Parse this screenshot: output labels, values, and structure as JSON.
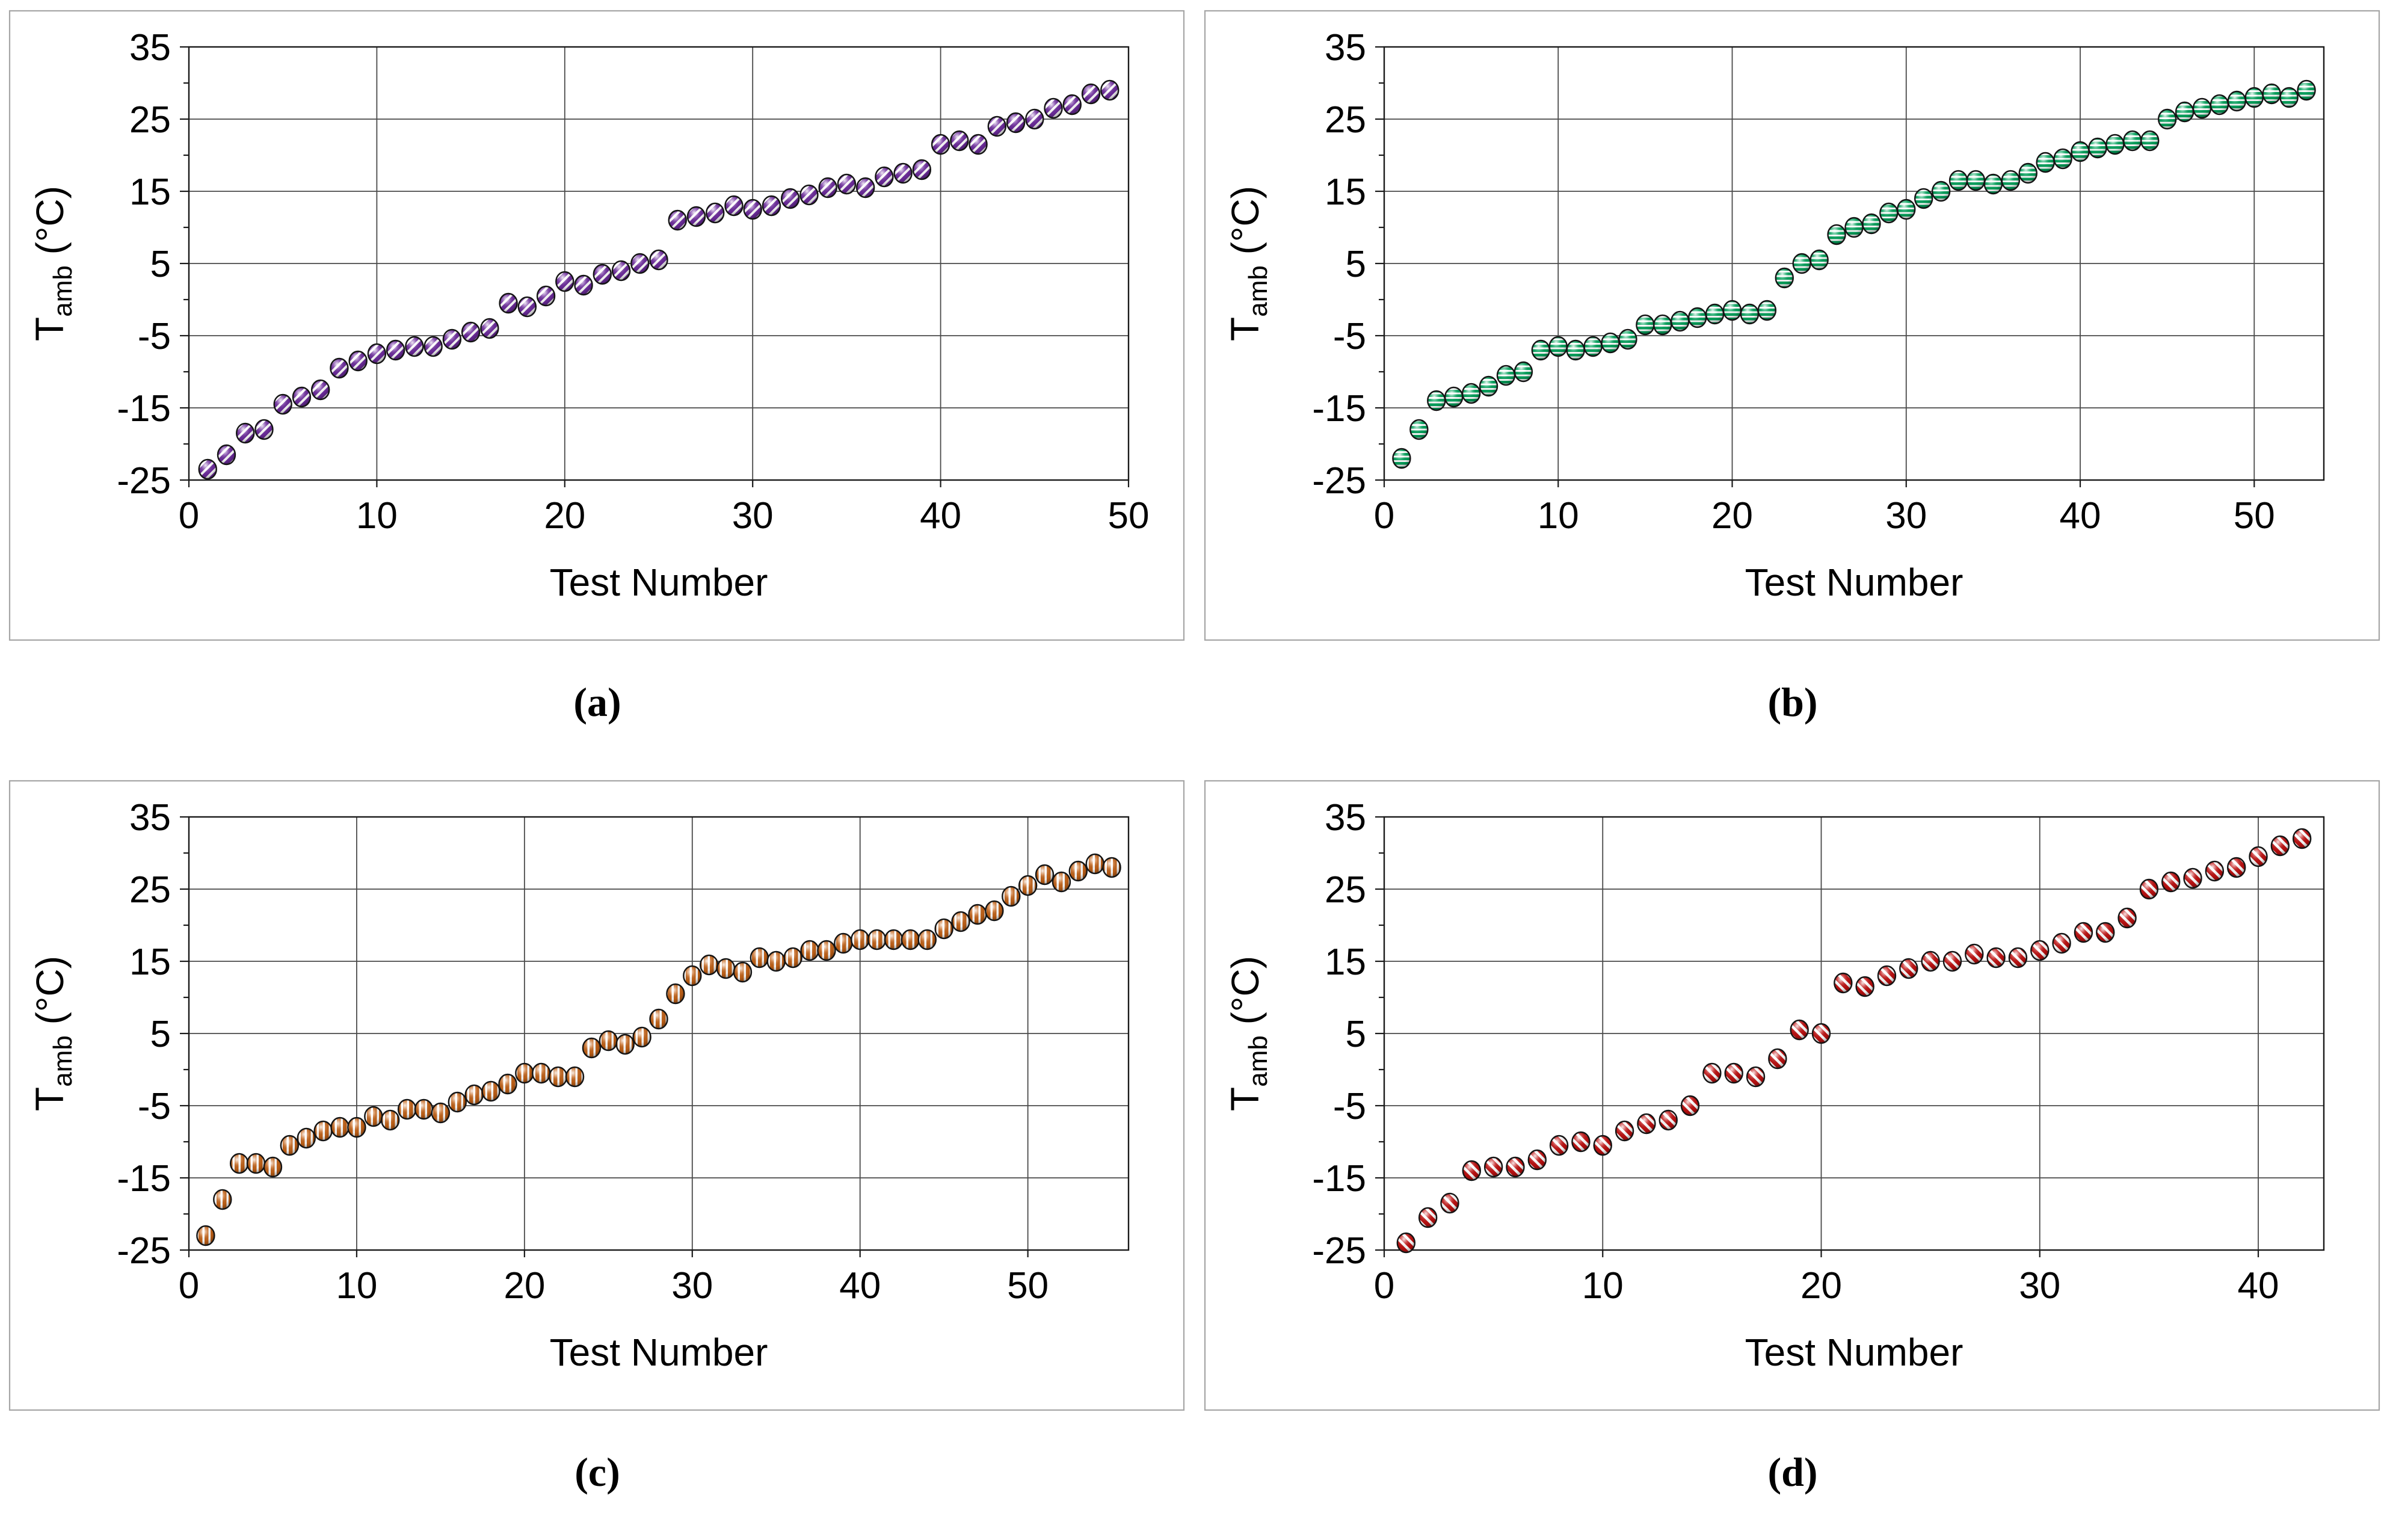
{
  "figure": {
    "background": "#ffffff",
    "panel_border_color": "#a6a6a6",
    "plot_border_color": "#1a1a1a",
    "gridline_color": "#4a4a4a",
    "tick_color": "#1a1a1a",
    "text_color": "#000000",
    "x_axis_title": "Test Number",
    "y_axis_title": {
      "symbol": "T",
      "subscript": "amb",
      "unit": "(°C)"
    }
  },
  "chart_data": [
    {
      "id": "a",
      "type": "scatter",
      "caption": "(a)",
      "xlabel": "Test Number",
      "ylabel": "T_amb (°C)",
      "xlim": [
        0,
        50
      ],
      "ylim": [
        -25,
        35
      ],
      "x_ticks": [
        0,
        10,
        20,
        30,
        40,
        50
      ],
      "y_ticks": [
        35,
        25,
        15,
        5,
        -5,
        -15,
        -25
      ],
      "grid": true,
      "legend": false,
      "marker": {
        "color": "#6E2C9E",
        "stripe_direction": "diagonal-up",
        "stripe_period": 11,
        "stripe_white_width": 4,
        "outline": "#141414"
      },
      "x": [
        1,
        2,
        3,
        4,
        5,
        6,
        7,
        8,
        9,
        10,
        11,
        12,
        13,
        14,
        15,
        16,
        17,
        18,
        19,
        20,
        21,
        22,
        23,
        24,
        25,
        26,
        27,
        28,
        29,
        30,
        31,
        32,
        33,
        34,
        35,
        36,
        37,
        38,
        39,
        40,
        41,
        42,
        43,
        44,
        45,
        46,
        47,
        48,
        49
      ],
      "values": [
        -23.5,
        -21.5,
        -18.5,
        -18,
        -14.5,
        -13.5,
        -12.5,
        -9.5,
        -8.5,
        -7.5,
        -7,
        -6.5,
        -6.5,
        -5.5,
        -4.5,
        -4,
        -0.5,
        -1,
        0.5,
        2.5,
        2,
        3.5,
        4,
        5,
        5.5,
        11,
        11.5,
        12,
        13,
        12.5,
        13,
        14,
        14.5,
        15.5,
        16,
        15.5,
        17,
        17.5,
        18,
        21.5,
        22,
        21.5,
        24,
        24.5,
        25,
        26.5,
        27,
        28.5,
        29
      ]
    },
    {
      "id": "b",
      "type": "scatter",
      "caption": "(b)",
      "xlabel": "Test Number",
      "ylabel": "T_amb (°C)",
      "xlim": [
        0,
        54
      ],
      "ylim": [
        -25,
        35
      ],
      "x_ticks": [
        0,
        10,
        20,
        30,
        40,
        50
      ],
      "y_ticks": [
        35,
        25,
        15,
        5,
        -5,
        -15,
        -25
      ],
      "grid": true,
      "legend": false,
      "marker": {
        "color": "#00A35B",
        "stripe_direction": "horizontal",
        "stripe_period": 7.5,
        "stripe_white_width": 3,
        "outline": "#141414"
      },
      "x": [
        1,
        2,
        3,
        4,
        5,
        6,
        7,
        8,
        9,
        10,
        11,
        12,
        13,
        14,
        15,
        16,
        17,
        18,
        19,
        20,
        21,
        22,
        23,
        24,
        25,
        26,
        27,
        28,
        29,
        30,
        31,
        32,
        33,
        34,
        35,
        36,
        37,
        38,
        39,
        40,
        41,
        42,
        43,
        44,
        45,
        46,
        47,
        48,
        49,
        50,
        51,
        52,
        53
      ],
      "values": [
        -22,
        -18,
        -14,
        -13.5,
        -13,
        -12,
        -10.5,
        -10,
        -7,
        -6.5,
        -7,
        -6.5,
        -6,
        -5.5,
        -3.5,
        -3.5,
        -3,
        -2.5,
        -2,
        -1.5,
        -2,
        -1.5,
        3,
        5,
        5.5,
        9,
        10,
        10.5,
        12,
        12.5,
        14,
        15,
        16.5,
        16.5,
        16,
        16.5,
        17.5,
        19,
        19.5,
        20.5,
        21,
        21.5,
        22,
        22,
        25,
        26,
        26.5,
        27,
        27.5,
        28,
        28.5,
        28,
        29
      ]
    },
    {
      "id": "c",
      "type": "scatter",
      "caption": "(c)",
      "xlabel": "Test Number",
      "ylabel": "T_amb (°C)",
      "xlim": [
        0,
        56
      ],
      "ylim": [
        -25,
        35
      ],
      "x_ticks": [
        0,
        10,
        20,
        30,
        40,
        50
      ],
      "y_ticks": [
        35,
        25,
        15,
        5,
        -5,
        -15,
        -25
      ],
      "grid": true,
      "legend": false,
      "marker": {
        "color": "#C46318",
        "stripe_direction": "vertical",
        "stripe_period": 10,
        "stripe_white_width": 3.5,
        "outline": "#141414"
      },
      "x": [
        1,
        2,
        3,
        4,
        5,
        6,
        7,
        8,
        9,
        10,
        11,
        12,
        13,
        14,
        15,
        16,
        17,
        18,
        19,
        20,
        21,
        22,
        23,
        24,
        25,
        26,
        27,
        28,
        29,
        30,
        31,
        32,
        33,
        34,
        35,
        36,
        37,
        38,
        39,
        40,
        41,
        42,
        43,
        44,
        45,
        46,
        47,
        48,
        49,
        50,
        51,
        52,
        53,
        54,
        55
      ],
      "values": [
        -23,
        -18,
        -13,
        -13,
        -13.5,
        -10.5,
        -9.5,
        -8.5,
        -8,
        -8,
        -6.5,
        -7,
        -5.5,
        -5.5,
        -6,
        -4.5,
        -3.5,
        -3,
        -2,
        -0.5,
        -0.5,
        -1,
        -1,
        3,
        4,
        3.5,
        4.5,
        7,
        10.5,
        13,
        14.5,
        14,
        13.5,
        15.5,
        15,
        15.5,
        16.5,
        16.5,
        17.5,
        18,
        18,
        18,
        18,
        18,
        19.5,
        20.5,
        21.5,
        22,
        24,
        25.5,
        27,
        26,
        27.5,
        28.5,
        28
      ]
    },
    {
      "id": "d",
      "type": "scatter",
      "caption": "(d)",
      "xlabel": "Test Number",
      "ylabel": "T_amb (°C)",
      "xlim": [
        0,
        43
      ],
      "ylim": [
        -25,
        35
      ],
      "x_ticks": [
        0,
        10,
        20,
        30,
        40
      ],
      "y_ticks": [
        35,
        25,
        15,
        5,
        -5,
        -15,
        -25
      ],
      "grid": true,
      "legend": false,
      "marker": {
        "color": "#C01111",
        "stripe_direction": "diagonal-down",
        "stripe_period": 11.5,
        "stripe_white_width": 4.5,
        "outline": "#141414"
      },
      "x": [
        1,
        2,
        3,
        4,
        5,
        6,
        7,
        8,
        9,
        10,
        11,
        12,
        13,
        14,
        15,
        16,
        17,
        18,
        19,
        20,
        21,
        22,
        23,
        24,
        25,
        26,
        27,
        28,
        29,
        30,
        31,
        32,
        33,
        34,
        35,
        36,
        37,
        38,
        39,
        40,
        41,
        42
      ],
      "values": [
        -24,
        -20.5,
        -18.5,
        -14,
        -13.5,
        -13.5,
        -12.5,
        -10.5,
        -10,
        -10.5,
        -8.5,
        -7.5,
        -7,
        -5,
        -0.5,
        -0.5,
        -1,
        1.5,
        5.5,
        5,
        12,
        11.5,
        13,
        14,
        15,
        15,
        16,
        15.5,
        15.5,
        16.5,
        17.5,
        19,
        19,
        21,
        25,
        26,
        26.5,
        27.5,
        28,
        29.5,
        31,
        32
      ]
    }
  ]
}
